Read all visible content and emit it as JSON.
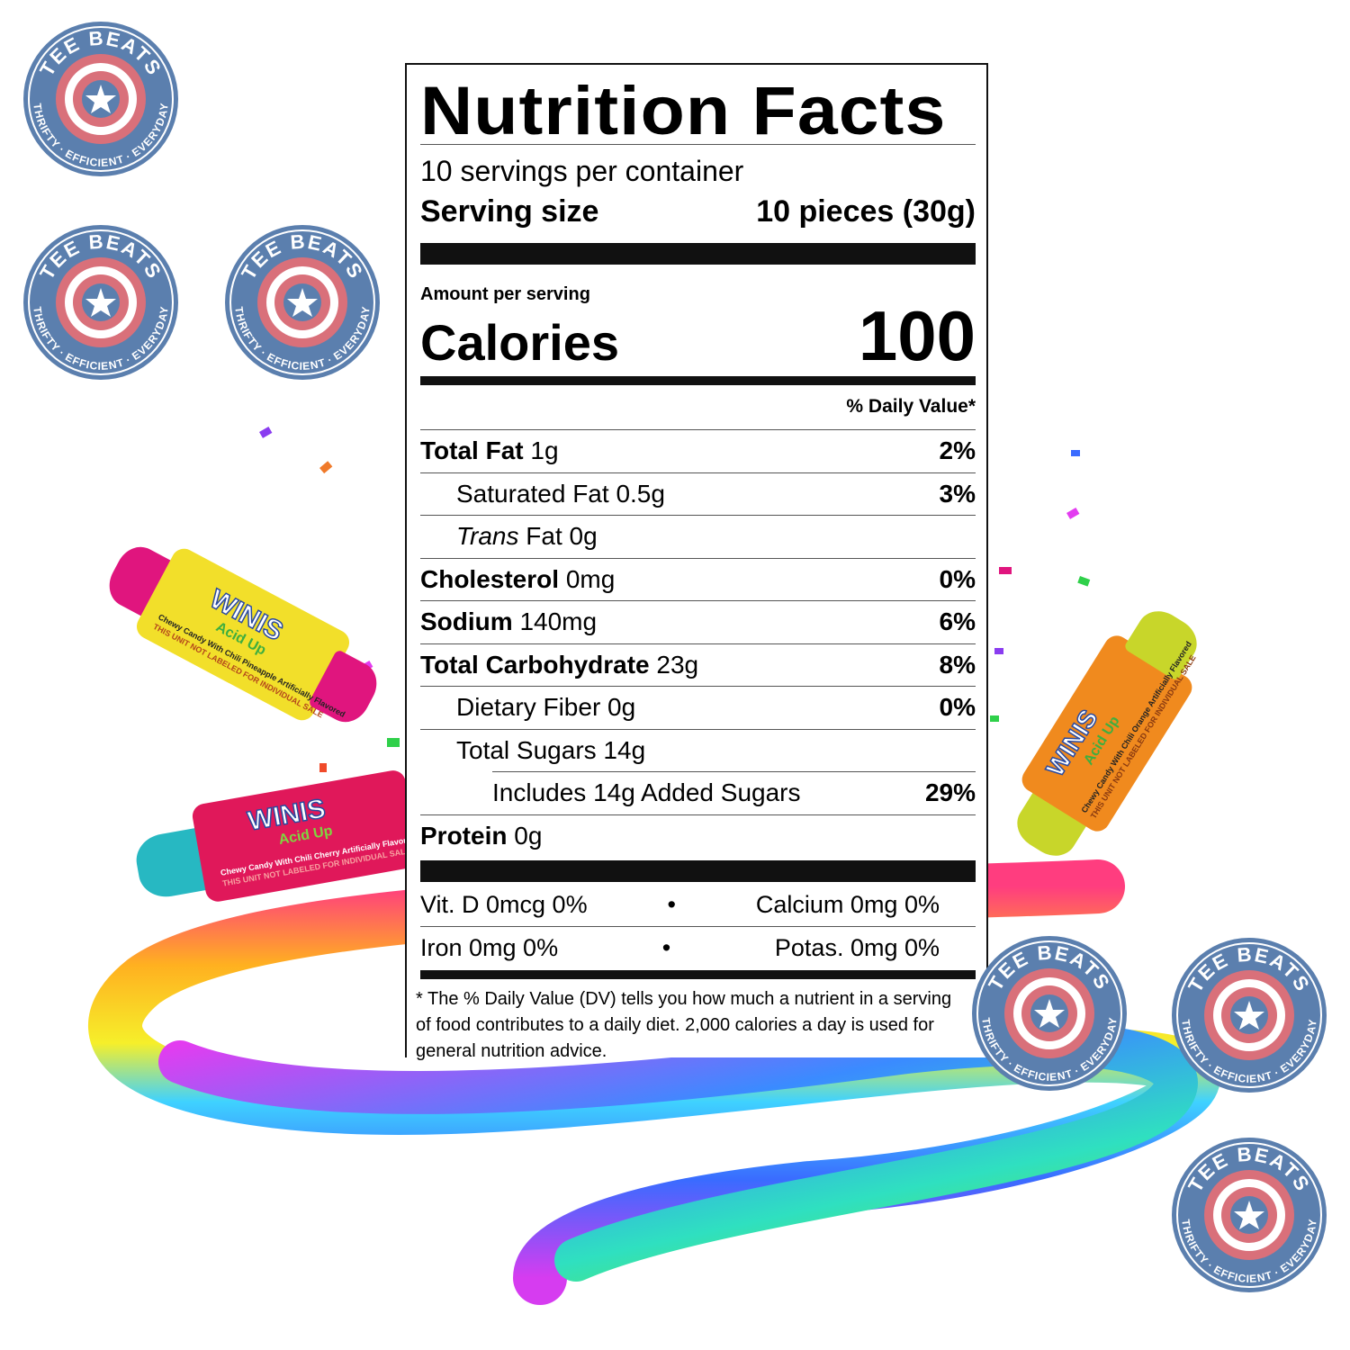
{
  "brand": {
    "badge_top": "TEE BEATS",
    "badge_bottom": "THRIFTY · EFFICIENT · EVERYDAY",
    "colors": {
      "blue": "#5b7fae",
      "red": "#d9707a",
      "white": "#ffffff"
    }
  },
  "candies": [
    {
      "brand": "WINIS",
      "sub": "Acid Up",
      "desc": "Chewy Candy With Chili Pineapple Artificially Flavored",
      "note": "THIS UNIT NOT LABELED FOR INDIVIDUAL SALE",
      "body": "#f2df2a",
      "ends": "#e0157e"
    },
    {
      "brand": "WINIS",
      "sub": "Acid Up",
      "desc": "Chewy Candy With Chili Cherry Artificially Flavored",
      "note": "THIS UNIT NOT LABELED FOR INDIVIDUAL SALE",
      "body": "#e0185a",
      "ends": "#27b8c2"
    },
    {
      "brand": "WINIS",
      "sub": "Acid Up",
      "desc": "Chewy Candy With Chili Orange Artificially Flavored",
      "note": "THIS UNIT NOT LABELED FOR INDIVIDUAL SALE",
      "body": "#f08a1e",
      "ends": "#c8d62a"
    }
  ],
  "label": {
    "title": "Nutrition Facts",
    "servings": "10 servings per container",
    "serving_size_label": "Serving size",
    "serving_size_value": "10 pieces (30g)",
    "amount_per_serving": "Amount per serving",
    "calories_label": "Calories",
    "calories_value": "100",
    "dv_header": "% Daily Value*",
    "nutrients": [
      {
        "name": "Total Fat",
        "amount": "1g",
        "dv": "2%",
        "bold": true,
        "indent": 0
      },
      {
        "name": "Saturated Fat",
        "amount": "0.5g",
        "dv": "3%",
        "bold": false,
        "indent": 1
      },
      {
        "name": "Trans",
        "amount": "Fat 0g",
        "dv": "",
        "bold": false,
        "indent": 1,
        "italic": true
      },
      {
        "name": "Cholesterol",
        "amount": "0mg",
        "dv": "0%",
        "bold": true,
        "indent": 0
      },
      {
        "name": "Sodium",
        "amount": "140mg",
        "dv": "6%",
        "bold": true,
        "indent": 0
      },
      {
        "name": "Total Carbohydrate",
        "amount": "23g",
        "dv": "8%",
        "bold": true,
        "indent": 0
      },
      {
        "name": "Dietary Fiber",
        "amount": "0g",
        "dv": "0%",
        "bold": false,
        "indent": 1
      },
      {
        "name": "Total Sugars",
        "amount": "14g",
        "dv": "",
        "bold": false,
        "indent": 1
      },
      {
        "name": "Includes 14g Added Sugars",
        "amount": "",
        "dv": "29%",
        "bold": false,
        "indent": 2
      },
      {
        "name": "Protein",
        "amount": "0g",
        "dv": "",
        "bold": true,
        "indent": 0
      }
    ],
    "vitamins": [
      [
        "Vit. D 0mcg 0%",
        "•",
        "Calcium 0mg 0%"
      ],
      [
        "Iron 0mg 0%",
        "•",
        "Potas. 0mg 0%"
      ]
    ],
    "footnote": "* The % Daily Value (DV) tells you how much a nutrient in a serving of food contributes to a daily diet. 2,000 calories a day is used for general nutrition advice."
  }
}
